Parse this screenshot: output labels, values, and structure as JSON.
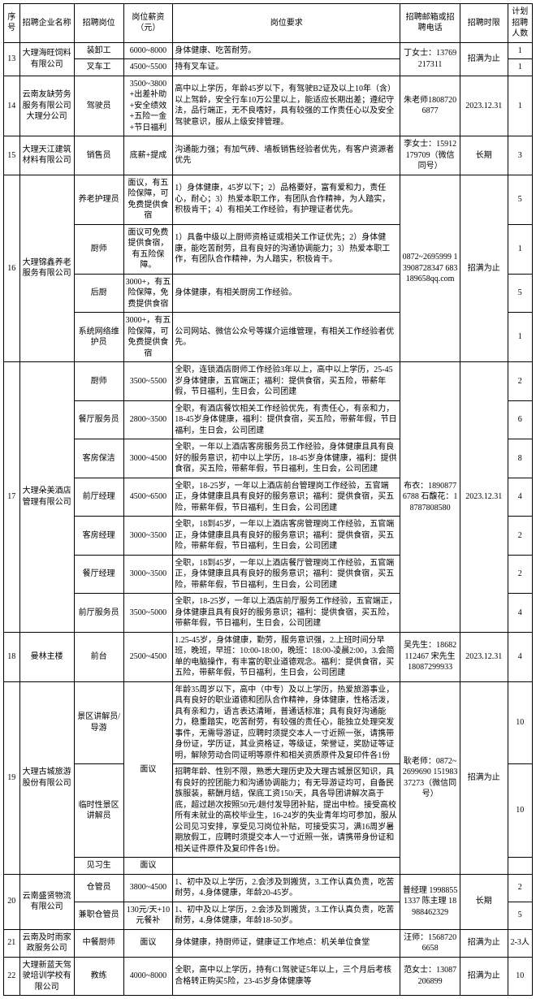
{
  "headers": {
    "seq": "序号",
    "company": "招聘企业名称",
    "position": "招聘岗位",
    "salary": "岗位薪资（元）",
    "requirement": "岗位要求",
    "contact": "招聘邮箱或招聘电话",
    "time": "招聘时限",
    "count": "计划招聘人数"
  },
  "rows": [
    {
      "seq": "13",
      "company": "大理海旺饲料有限公司",
      "contact": "丁女士：13769217311",
      "time": "招满为止",
      "positions": [
        {
          "position": "装卸工",
          "salary": "6000~8000",
          "req": "身体健康、吃苦耐劳。",
          "count": "1"
        },
        {
          "position": "叉车工",
          "salary": "4500~5500",
          "req": "持有叉车证。",
          "count": "1"
        }
      ]
    },
    {
      "seq": "14",
      "company": "云南友缺劳务服务有限公司大理分公司",
      "contact": "朱老师18087206877",
      "time": "2023.12.31",
      "positions": [
        {
          "position": "驾驶员",
          "salary": "3500~3800+出差补助+安全绩效+五险一金+节日福利",
          "req": "高中以上学历，年龄45岁以下，有驾驶B2证及以上10年（含）以上驾龄，安全行车10万公里以上，能适应长期出差；遵纪守法，品行端正，无不良嗜好，具有较强的工作责任心以及安全驾驶意识，服从上级安排管理。",
          "count": "1"
        }
      ]
    },
    {
      "seq": "15",
      "company": "大理天江建筑材料有限公司",
      "contact": "李女士：15912179709（微信同号）",
      "time": "长期",
      "positions": [
        {
          "position": "销售员",
          "salary": "底薪+提成",
          "req": "沟通能力强；有加气砖、墙板销售经验者优先，有客户资源者优先",
          "count": "3"
        }
      ]
    },
    {
      "seq": "16",
      "company": "大理锦鑫养老服务有限公司",
      "contact": "0872~2695999 13908728347  683189658qq.com",
      "time": "招满为止",
      "positions": [
        {
          "position": "养老护理员",
          "salary": "面议，有五险保障，可免费提供食宿",
          "req": "1）身体健康，45岁以下；2）品格要好，富有爱和力，责任心，耐心；3）热爱本职工作，有团队合作精神，为人踏实，积极肯干；4）有相关工作经验，有护理证者优先。",
          "count": "5"
        },
        {
          "position": "厨师",
          "salary": "面议可免费提供食宿，有五险保障。",
          "req": "1）具备中级以上厨师资格证或相关工作证优先；2）身体健康，能吃苦耐劳，且有良好的沟通协调能力；3）热爱本职工作，有团队合作精神，为人踏实，积极肯干。",
          "count": "1"
        },
        {
          "position": "后厨",
          "salary": "3000+，有五险保障，免费提供食宿",
          "req": "身体健康，有相关厨房工作经验。",
          "count": "5"
        },
        {
          "position": "系统网络维护员",
          "salary": "3000+，有五险保障，可免费提供食宿",
          "req": "公司网站、微信公众号等媒介运维管理，有相关工作经验者优先。",
          "count": "1"
        }
      ]
    },
    {
      "seq": "17",
      "company": "大理朵美酒店管理有限公司",
      "contact": "布衣：18908776788 石馥花：18787808580",
      "time": "2023.12.31",
      "positions": [
        {
          "position": "厨师",
          "salary": "3500~5500",
          "req": "全职，连锁酒店厨师工作经验3年以上，高中以上学历，25-45岁身体健康，五官端正；福利：提供食宿，买五险，带薪年假，节日福利，生日会，公司团建",
          "count": "2"
        },
        {
          "position": "餐厅服务员",
          "salary": "2800~3500",
          "req": "全职，有酒店餐饮相关工作经验优先，有责任心，有亲和力，18-45岁身体健康，福利：提供食宿，买五险，带薪年假，节日福利，生日会，公司团建",
          "count": "6"
        },
        {
          "position": "客房保洁",
          "salary": "3000~4500",
          "req": "全职，一年以上酒店客房服务员工作经验，身体健康且具有良好的服务意识，初中以上学历，18-45岁身体健康，福利：提供食宿，买五险，带薪年假，节日福利，生日会，公司团建",
          "count": "8"
        },
        {
          "position": "前厅经理",
          "salary": "4500~6500",
          "req": "全职，18-25岁，一年以上酒店前台管理岗工作经验，五官端正，身体健康且具有良好的服务意识；福利：提供食宿，买五险，带薪年假，节日福利，生日会，公司团建",
          "count": "4"
        },
        {
          "position": "客房经理",
          "salary": "3000~3500",
          "req": "全职，18到45岁，一年以上酒店客房管理岗工作经验，五官端正，身体健康且具有良好的服务意识；福利：提供食宿，买五险，带薪年假，节日福利，生日会，公司团建",
          "count": "2"
        },
        {
          "position": "餐厅经理",
          "salary": "3000~3500",
          "req": "全职，18到45岁，一年以上酒店餐厅管理岗工作经验，五官端正，身体健康且具有良好的服务意识；福利：提供食宿，买五险，带薪年假，节日福利，生日会，公司团建",
          "count": "2"
        },
        {
          "position": "前厅服务员",
          "salary": "3500~5000",
          "req": "全职，18-25岁，一年以上酒店前厅服务工作经验，五官端正，身体健康且具有良好的服务意识；福利：提供食宿，买五险，带薪年假，节日福利，生日会，公司团建",
          "count": "4"
        }
      ]
    },
    {
      "seq": "18",
      "company": "曼林主楼",
      "contact": "吴先生：18682112467 宋先生 18087299933",
      "time": "2023.12.31",
      "positions": [
        {
          "position": "前台",
          "salary": "2500~4500",
          "req": "1.25-45岁，身体健康，勤劳，服务意识强，2.上班时间分早班，晚班，早班：10:00-18:00，晚班：18:00-凌晨2:00，3.会简单的电脑操作，有丰富的职业道德观念。福利：提供食宿，买五险，带薪年假，节日福利，生日会，公司团建",
          "count": "4"
        }
      ]
    },
    {
      "seq": "19",
      "company": "大理古城旅游股份有限公司",
      "contact": "\n耿老师：0872~2699690 15198337273（微信同号）\n",
      "time": "招满为止",
      "positions": [
        {
          "position": "景区讲解员/导游",
          "salary": "面议",
          "req": "年龄35周岁以下，高中（中专）及以上学历，热爱旅游事业，具有良好的职业道德和团队合作精神，身体健康，性格活泼，具有亲和力，语言表达清晰，普通话标准；具有良好沟通能力，稳重踏实，吃苦耐劳，有较强的责任心，能独立处理突发事件，无需导游证，应聘时须提交本人一寸近照一张，请携带身份证，学历证，其业资格证，等级证，荣誉证，奖励证等证明，解除劳动合同证明等原件和相关资质原件及复印件各1份",
          "count": "10",
          "salaryRowspan": 2
        },
        {
          "position": "临时性景区讲解员",
          "salary": null,
          "req": "招聘年龄、性别不限，熟悉大理历史及大理古城景区知识，具有良好的控团能力和沟通协调能力；有无导游证均可，自备民族服装，薪酬月结，保底工资150/天，具各导团讲解次高于底，超过趟次按照50元/趟付发导团补贴，提出中检。接受高校所有未就业的高校毕业生，16-24岁的失业青年均可参加，服从公司见习安排，享受见习岗位补贴，可接受实习，满16周岁暑期放假工，应聘时须提交本人一寸近照一张，请携带身份证和相关证件原件及复印件各1份。",
          "count": "10"
        },
        {
          "position": "见习生",
          "salary": "面议",
          "req": "",
          "count": ""
        }
      ]
    },
    {
      "seq": "20",
      "company": "云南盛贤物流有限公司",
      "contact": "普经理 19988551337 陈主理 18988462329",
      "time": "长期",
      "positions": [
        {
          "position": "仓管员",
          "salary": "3800~4500",
          "req": "1、初中及以上学历，2.会涉及到搬货，3.工作认真负责，吃苦耐劳，4.身体健康，年龄20-45岁。",
          "count": "2"
        },
        {
          "position": "兼职仓管员",
          "salary": "130元/天+10元餐补",
          "req": "1、初中及以上学历，2.会涉及到搬货，3.工作认真负责，吃苦耐劳，4.身体健康，年龄18-50岁。",
          "count": "5"
        }
      ]
    },
    {
      "seq": "21",
      "company": "云南及时雨家政服务公司",
      "contact": "汪师：15687206658",
      "time": "招满为止",
      "positions": [
        {
          "position": "中餐厨师",
          "salary": "面议",
          "req": "身体健康，持厨师证，健康证工作地点：机关单位食堂",
          "count": "2-3人"
        }
      ]
    },
    {
      "seq": "22",
      "company": "大理新蓝天驾驶培训学校有限公司",
      "contact": "范女士：13087206899",
      "time": "招满为止",
      "positions": [
        {
          "position": "教练",
          "salary": "4000~8000",
          "req": "全职，高中以上学历，持有C1驾驶证5年以上，三个月后考核合格转正购买5险，23-45岁身体健康等",
          "count": "10"
        }
      ]
    }
  ]
}
